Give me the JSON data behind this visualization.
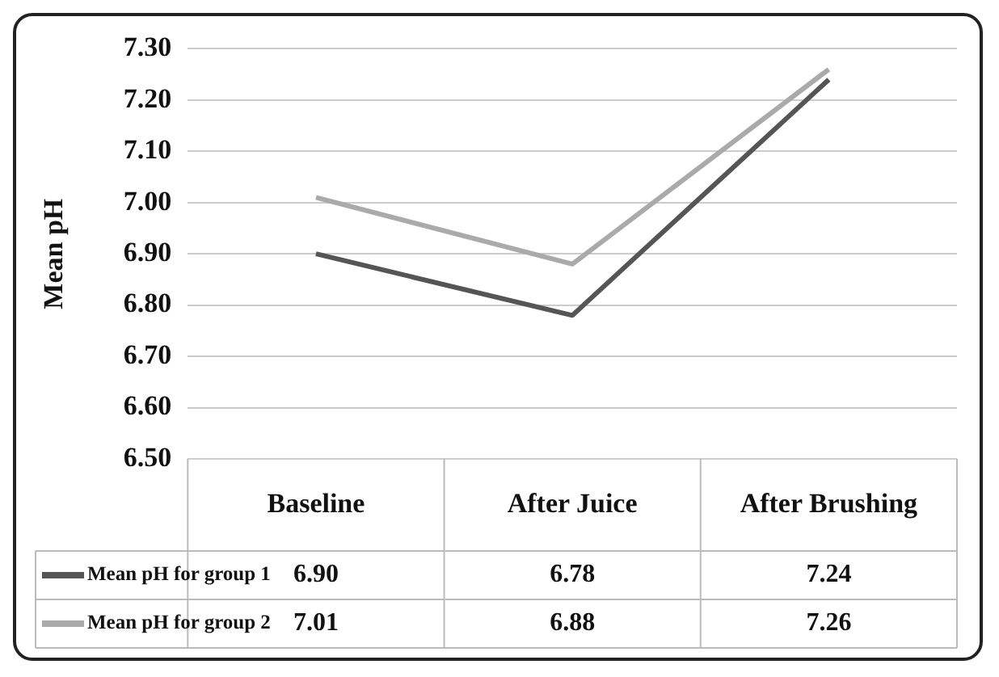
{
  "chart_data": {
    "type": "line",
    "ylabel": "Mean pH",
    "categories": [
      "Baseline",
      "After Juice",
      "After Brushing"
    ],
    "series": [
      {
        "name": "Mean pH for group 1",
        "color": "#555555",
        "values": [
          6.9,
          6.78,
          7.24
        ],
        "value_labels": [
          "6.90",
          "6.78",
          "7.24"
        ]
      },
      {
        "name": "Mean pH for group 2",
        "color": "#aaaaaa",
        "values": [
          7.01,
          6.88,
          7.26
        ],
        "value_labels": [
          "7.01",
          "6.88",
          "7.26"
        ]
      }
    ],
    "ylim": [
      6.5,
      7.3
    ],
    "yticks": [
      {
        "value": 6.5,
        "label": "6.50"
      },
      {
        "value": 6.6,
        "label": "6.60"
      },
      {
        "value": 6.7,
        "label": "6.70"
      },
      {
        "value": 6.8,
        "label": "6.80"
      },
      {
        "value": 6.9,
        "label": "6.90"
      },
      {
        "value": 7.0,
        "label": "7.00"
      },
      {
        "value": 7.1,
        "label": "7.10"
      },
      {
        "value": 7.2,
        "label": "7.20"
      },
      {
        "value": 7.3,
        "label": "7.30"
      }
    ],
    "grid": "y",
    "legend": "bottom left",
    "marker": "none",
    "line_style": "solid"
  }
}
